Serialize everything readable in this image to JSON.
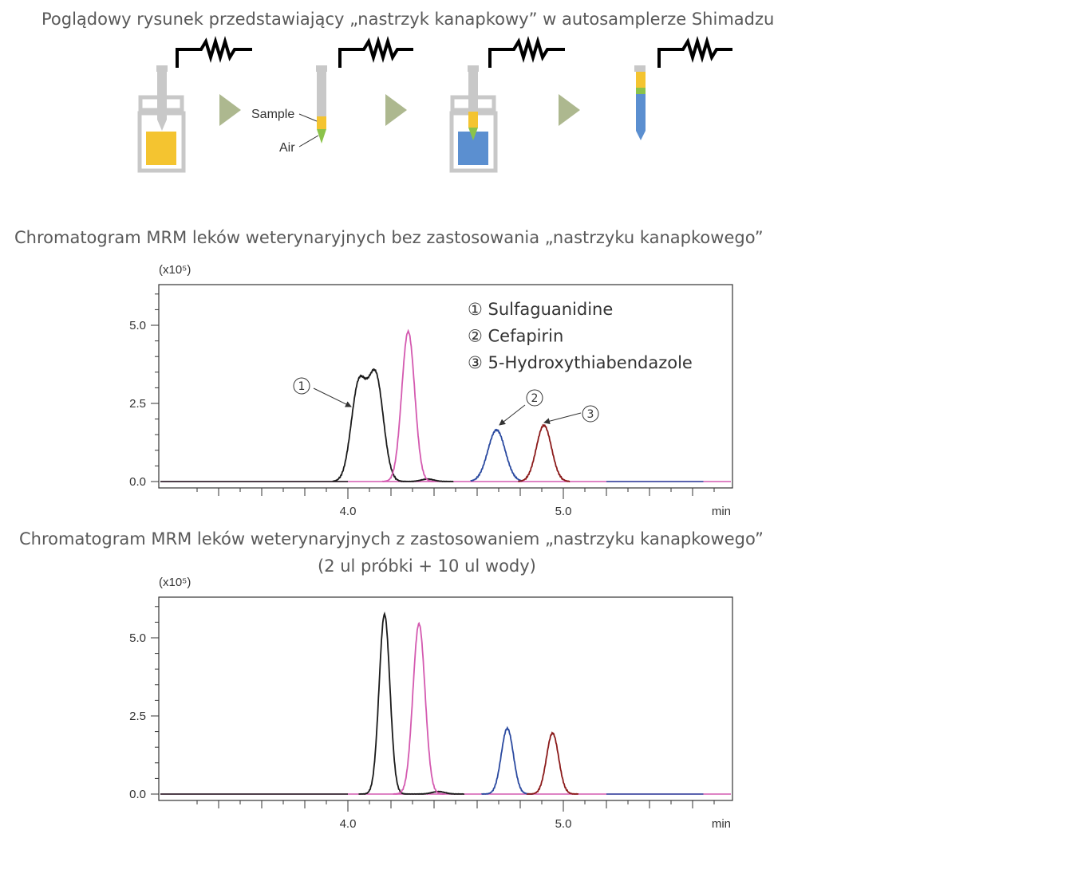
{
  "titles": {
    "diagram": "Poglądowy rysunek przedstawiający „nastrzyk kanapkowy” w autosamplerze Shimadzu",
    "chart1": "Chromatogram MRM leków weterynaryjnych bez zastosowania „nastrzyku kanapkowego”",
    "chart2_line1": "Chromatogram MRM leków weterynaryjnych z zastosowaniem „nastrzyku kanapkowego”",
    "chart2_line2": "(2 ul próbki + 10 ul wody)"
  },
  "diagram": {
    "sample_label": "Sample",
    "air_label": "Air",
    "colors": {
      "sample": "#f4c430",
      "air": "#8bc34a",
      "water": "#5b8fd0",
      "vial": "#c8c8c8",
      "arrow": "#7a8a50"
    }
  },
  "chart_data": [
    {
      "type": "line",
      "title": "",
      "xlabel": "min",
      "ylabel": "",
      "y_multiplier": "(x10⁵)",
      "xlim": [
        3.25,
        5.78
      ],
      "ylim": [
        0,
        6.2
      ],
      "x_ticks": [
        "4.0",
        "5.0"
      ],
      "y_ticks": [
        "0.0",
        "2.5",
        "5.0"
      ],
      "legend": [
        "① Sulfaguanidine",
        "② Cefapirin",
        "③ 5-Hydroxythiabendazole"
      ],
      "annotations": [
        "①",
        "②",
        "③"
      ],
      "series": [
        {
          "color": "#1a1a1a",
          "peaks": [
            [
              4.05,
              3.05,
              0.035
            ],
            [
              4.13,
              3.3,
              0.035
            ],
            [
              4.37,
              0.08,
              0.03
            ]
          ]
        },
        {
          "color": "#d45ab0",
          "peaks": [
            [
              4.28,
              4.8,
              0.03
            ]
          ]
        },
        {
          "color": "#2b4aa0",
          "peaks": [
            [
              4.69,
              1.65,
              0.04
            ]
          ]
        },
        {
          "color": "#8b1a1a",
          "peaks": [
            [
              4.91,
              1.8,
              0.035
            ]
          ]
        }
      ]
    },
    {
      "type": "line",
      "title": "",
      "xlabel": "min",
      "ylabel": "",
      "y_multiplier": "(x10⁵)",
      "xlim": [
        3.25,
        5.78
      ],
      "ylim": [
        0,
        6.2
      ],
      "x_ticks": [
        "4.0",
        "5.0"
      ],
      "y_ticks": [
        "0.0",
        "2.5",
        "5.0"
      ],
      "series": [
        {
          "color": "#1a1a1a",
          "peaks": [
            [
              4.17,
              5.75,
              0.025
            ],
            [
              4.42,
              0.08,
              0.03
            ]
          ]
        },
        {
          "color": "#d45ab0",
          "peaks": [
            [
              4.33,
              5.45,
              0.028
            ]
          ]
        },
        {
          "color": "#2b4aa0",
          "peaks": [
            [
              4.74,
              2.1,
              0.028
            ]
          ]
        },
        {
          "color": "#8b1a1a",
          "peaks": [
            [
              4.95,
              1.95,
              0.028
            ]
          ]
        }
      ]
    }
  ]
}
